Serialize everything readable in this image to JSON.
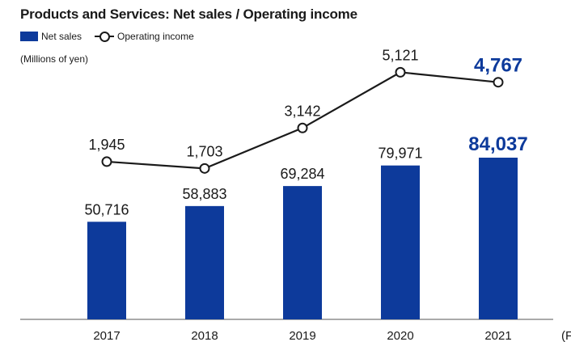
{
  "title": "Products and Services: Net sales / Operating income",
  "legend": {
    "net_sales": "Net sales",
    "operating_income": "Operating income"
  },
  "unit_label": "(Millions of yen)",
  "axis_suffix": "(F",
  "colors": {
    "bar": "#0d3a9b",
    "line": "#1a1a1a",
    "highlight": "#0d3a9b",
    "text": "#1a1a1a"
  },
  "chart_data": {
    "type": "bar",
    "categories": [
      "2017",
      "2018",
      "2019",
      "2020",
      "2021"
    ],
    "series": [
      {
        "name": "Net sales",
        "type": "bar",
        "values": [
          50716,
          58883,
          69284,
          79971,
          84037
        ],
        "labels": [
          "50,716",
          "58,883",
          "69,284",
          "79,971",
          "84,037"
        ]
      },
      {
        "name": "Operating income",
        "type": "line",
        "values": [
          1945,
          1703,
          3142,
          5121,
          4767
        ],
        "labels": [
          "1,945",
          "1,703",
          "3,142",
          "5,121",
          "4,767"
        ]
      }
    ],
    "highlight_index": 4,
    "title": "Products and Services: Net sales / Operating income",
    "ylabel": "(Millions of yen)",
    "grid": false
  }
}
